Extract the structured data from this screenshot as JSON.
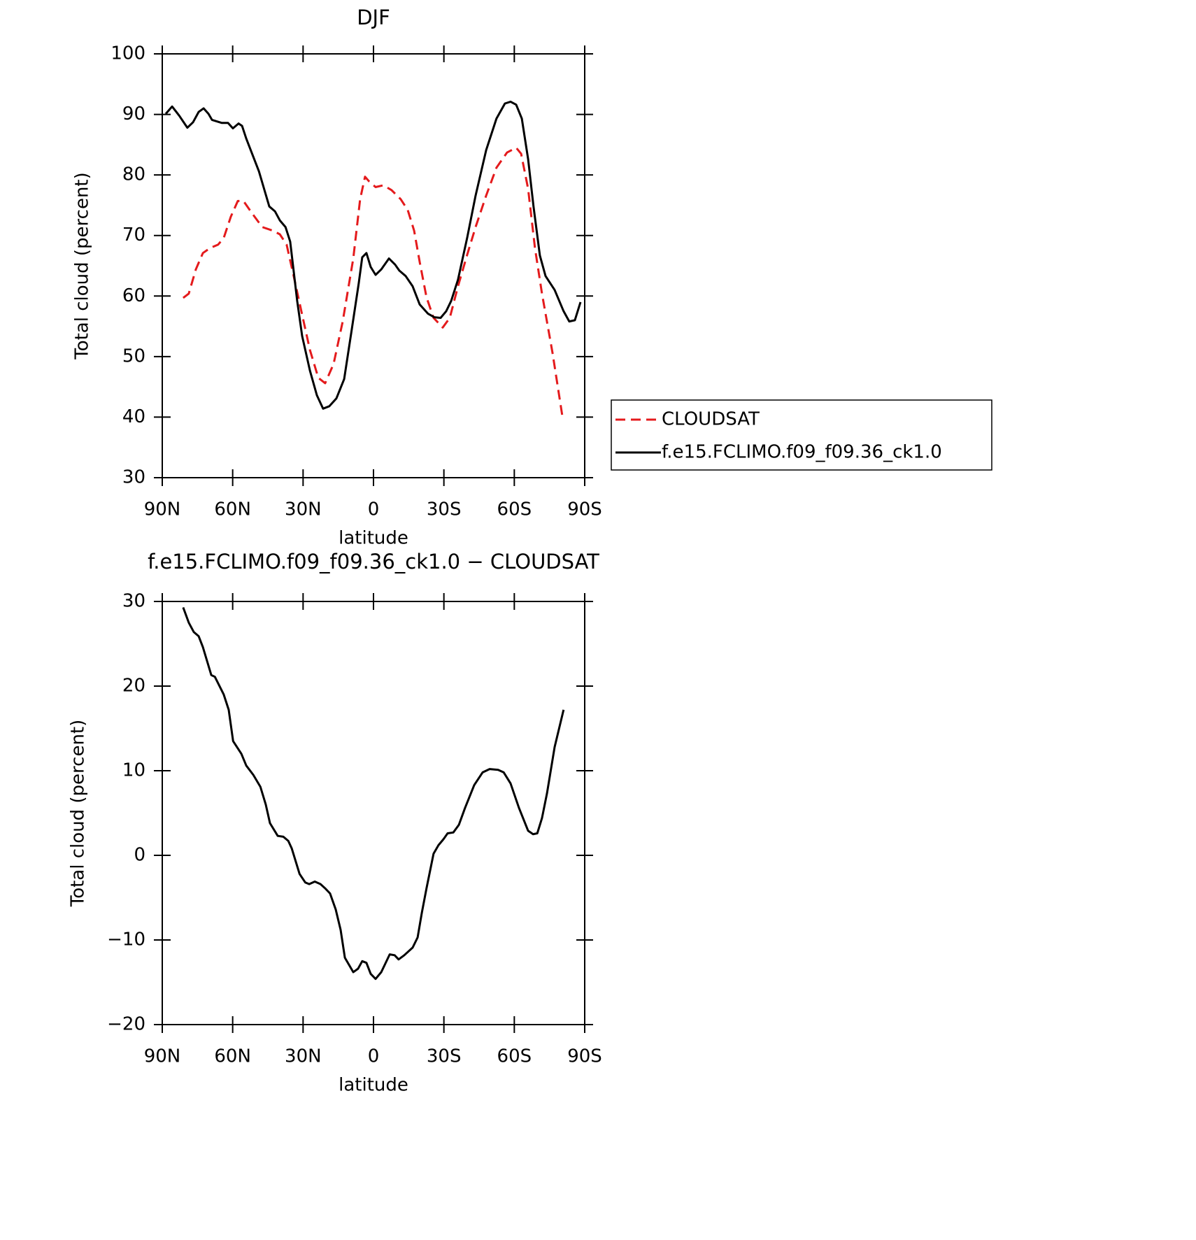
{
  "chart_data": [
    {
      "type": "line",
      "title": "DJF",
      "xlabel": "latitude",
      "ylabel": "Total cloud (percent)",
      "xlim": [
        90,
        -90
      ],
      "xticks": [
        {
          "value": 90,
          "label": "90N"
        },
        {
          "value": 60,
          "label": "60N"
        },
        {
          "value": 30,
          "label": "30N"
        },
        0,
        {
          "value": -30,
          "label": "30S"
        },
        {
          "value": -60,
          "label": "60S"
        },
        {
          "value": -90,
          "label": "90S"
        }
      ],
      "ylim": [
        30,
        100
      ],
      "yticks": [
        30,
        40,
        50,
        60,
        70,
        80,
        90,
        100
      ],
      "legend": "outside-right",
      "series": [
        {
          "name": "CLOUDSAT",
          "color": "#e41a1c",
          "dash": "dashed",
          "x": [
            81.1,
            78.7,
            75.7,
            72.7,
            69.7,
            66.2,
            63.8,
            60.8,
            57.8,
            55.4,
            51.8,
            47.4,
            42.9,
            39.9,
            37.0,
            34.0,
            30.4,
            27.1,
            23.5,
            20.6,
            17.0,
            13.1,
            8.6,
            5.7,
            3.6,
            1.8,
            -0.9,
            -4.2,
            -7.7,
            -11.6,
            -14.6,
            -17.3,
            -19.7,
            -22.6,
            -25.6,
            -29.5,
            -32.5,
            -36.0,
            -39.9,
            -43.5,
            -48.0,
            -52.4,
            -56.9,
            -60.8,
            -62.9,
            -65.9,
            -68.8,
            -71.8,
            -76.3,
            -80.7
          ],
          "values": [
            59.7,
            60.4,
            64.4,
            67.1,
            67.9,
            68.5,
            69.6,
            73.1,
            75.7,
            75.7,
            73.7,
            71.4,
            70.8,
            70.2,
            68.5,
            63.3,
            56.9,
            51.1,
            46.5,
            45.6,
            48.8,
            55.8,
            66.2,
            76.0,
            79.7,
            78.9,
            78.0,
            78.3,
            77.5,
            76.0,
            74.2,
            70.8,
            65.6,
            59.8,
            56.4,
            54.8,
            56.4,
            61.6,
            66.8,
            71.4,
            76.6,
            81.2,
            83.7,
            84.5,
            83.5,
            77.7,
            67.9,
            60.4,
            50.6,
            39.6
          ]
        },
        {
          "name": "f.e15.FCLIMO.f09_f09.36_ck1.0",
          "color": "#000000",
          "dash": "solid",
          "x": [
            88.5,
            85.8,
            82.8,
            79.3,
            76.9,
            74.5,
            72.4,
            70.3,
            68.8,
            64.7,
            62.0,
            59.9,
            57.5,
            56.0,
            54.2,
            48.8,
            44.4,
            42.0,
            39.9,
            37.5,
            35.5,
            32.5,
            30.4,
            27.1,
            24.1,
            21.5,
            18.8,
            15.8,
            12.5,
            9.2,
            6.3,
            4.8,
            3.0,
            1.2,
            -0.9,
            -3.3,
            -6.6,
            -9.2,
            -11.0,
            -13.7,
            -16.7,
            -19.7,
            -23.2,
            -25.9,
            -28.6,
            -31.0,
            -33.1,
            -36.0,
            -39.9,
            -43.5,
            -48.0,
            -52.4,
            -56.0,
            -58.4,
            -60.8,
            -63.2,
            -65.9,
            -68.2,
            -70.9,
            -73.3,
            -77.2,
            -81.0,
            -83.4,
            -85.8,
            -88.2
          ],
          "values": [
            90.1,
            91.3,
            89.8,
            87.8,
            88.7,
            90.4,
            91.0,
            90.1,
            89.1,
            88.6,
            88.6,
            87.7,
            88.5,
            88.1,
            86.0,
            80.6,
            74.8,
            74.0,
            72.5,
            71.4,
            69.0,
            59.2,
            53.4,
            47.7,
            43.6,
            41.4,
            41.8,
            43.1,
            46.3,
            54.6,
            62.1,
            66.4,
            67.1,
            64.8,
            63.5,
            64.4,
            66.2,
            65.2,
            64.2,
            63.3,
            61.6,
            58.6,
            57.1,
            56.5,
            56.4,
            57.5,
            59.2,
            62.7,
            69.6,
            76.6,
            84.1,
            89.3,
            91.8,
            92.1,
            91.6,
            89.3,
            82.6,
            74.8,
            66.7,
            63.3,
            61.0,
            57.5,
            55.8,
            56.0,
            59.0
          ]
        }
      ]
    },
    {
      "type": "line",
      "title": "f.e15.FCLIMO.f09_f09.36_ck1.0 − CLOUDSAT",
      "xlabel": "latitude",
      "ylabel": "Total cloud (percent)",
      "xlim": [
        90,
        -90
      ],
      "xticks": [
        {
          "value": 90,
          "label": "90N"
        },
        {
          "value": 60,
          "label": "60N"
        },
        {
          "value": 30,
          "label": "30N"
        },
        0,
        {
          "value": -30,
          "label": "30S"
        },
        {
          "value": -60,
          "label": "60S"
        },
        {
          "value": -90,
          "label": "90S"
        }
      ],
      "ylim": [
        -20,
        30
      ],
      "yticks": [
        {
          "value": -20,
          "label": "−20"
        },
        {
          "value": -10,
          "label": "−10"
        },
        0,
        10,
        20,
        30
      ],
      "series": [
        {
          "color": "#000000",
          "dash": "solid",
          "x": [
            81.1,
            78.7,
            76.6,
            74.5,
            72.7,
            69.1,
            67.6,
            63.8,
            61.7,
            59.8,
            56.3,
            54.2,
            51.2,
            48.2,
            45.9,
            44.1,
            40.8,
            38.4,
            36.3,
            34.8,
            31.5,
            29.1,
            27.4,
            25.0,
            22.6,
            20.6,
            18.5,
            16.1,
            14.0,
            12.2,
            8.6,
            6.6,
            4.8,
            3.0,
            1.2,
            -0.9,
            -3.3,
            -6.9,
            -9.0,
            -10.7,
            -13.1,
            -16.7,
            -18.8,
            -20.6,
            -22.6,
            -25.6,
            -27.7,
            -29.8,
            -31.6,
            -34.0,
            -36.4,
            -39.0,
            -42.9,
            -46.5,
            -49.5,
            -53.1,
            -55.5,
            -58.4,
            -62.0,
            -65.9,
            -68.0,
            -69.8,
            -71.8,
            -73.9,
            -77.2,
            -81.0
          ],
          "values": [
            29.3,
            27.5,
            26.4,
            25.9,
            24.6,
            21.3,
            21.1,
            19.0,
            17.2,
            13.5,
            12.0,
            10.6,
            9.5,
            8.1,
            6.0,
            3.8,
            2.3,
            2.2,
            1.7,
            0.8,
            -2.2,
            -3.2,
            -3.4,
            -3.1,
            -3.4,
            -3.9,
            -4.5,
            -6.4,
            -8.8,
            -12.1,
            -13.8,
            -13.4,
            -12.5,
            -12.7,
            -14.0,
            -14.6,
            -13.8,
            -11.7,
            -11.8,
            -12.3,
            -11.8,
            -10.9,
            -9.7,
            -6.8,
            -3.9,
            0.2,
            1.2,
            1.9,
            2.6,
            2.7,
            3.6,
            5.6,
            8.3,
            9.8,
            10.2,
            10.1,
            9.8,
            8.5,
            5.6,
            2.9,
            2.5,
            2.6,
            4.4,
            7.3,
            12.8,
            17.2
          ]
        }
      ]
    }
  ]
}
